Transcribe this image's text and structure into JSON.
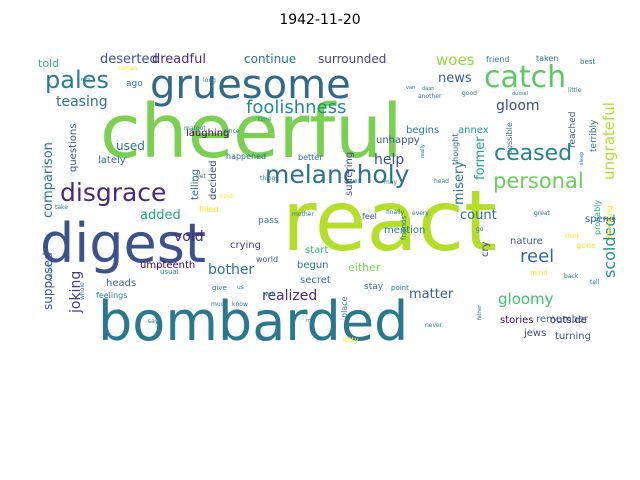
{
  "title": "1942-11-20",
  "words": [
    {
      "text": "cheerful",
      "color": "#7ad151"
    },
    {
      "text": "react",
      "color": "#b5de2b"
    },
    {
      "text": "bombarded",
      "color": "#2a788e"
    },
    {
      "text": "digest",
      "color": "#3b528b"
    },
    {
      "text": "gruesome",
      "color": "#31688e"
    },
    {
      "text": "catch",
      "color": "#5ec962"
    },
    {
      "text": "melancholy",
      "color": "#2c728e"
    },
    {
      "text": "disgrace",
      "color": "#482878"
    },
    {
      "text": "pales",
      "color": "#287d8e"
    },
    {
      "text": "personal",
      "color": "#6ccd5a"
    },
    {
      "text": "foolishness",
      "color": "#238a8d"
    },
    {
      "text": "ceased",
      "color": "#26828e"
    },
    {
      "text": "reel",
      "color": "#2f6c8e"
    },
    {
      "text": "gloomy",
      "color": "#42be71"
    },
    {
      "text": "teasing",
      "color": "#2d708e"
    },
    {
      "text": "woes",
      "color": "#95d840"
    },
    {
      "text": "gloom",
      "color": "#3e4a89"
    },
    {
      "text": "deserted",
      "color": "#3b528b"
    },
    {
      "text": "dreadful",
      "color": "#472d7b"
    },
    {
      "text": "continue",
      "color": "#2a788e"
    },
    {
      "text": "surrounded",
      "color": "#414487"
    },
    {
      "text": "news",
      "color": "#33638d"
    },
    {
      "text": "scolded",
      "color": "#21918c"
    },
    {
      "text": "ungrateful",
      "color": "#b5de2b"
    },
    {
      "text": "realized",
      "color": "#472d7b"
    },
    {
      "text": "comparison",
      "color": "#2a788e"
    },
    {
      "text": "supposed",
      "color": "#3b528b"
    },
    {
      "text": "joking",
      "color": "#443983"
    },
    {
      "text": "void",
      "color": "#482475"
    },
    {
      "text": "bother",
      "color": "#2c728e"
    },
    {
      "text": "added",
      "color": "#22a884"
    },
    {
      "text": "count",
      "color": "#2d708e"
    },
    {
      "text": "help",
      "color": "#3e4a89"
    },
    {
      "text": "matter",
      "color": "#34618d"
    },
    {
      "text": "former",
      "color": "#20a486"
    },
    {
      "text": "misery",
      "color": "#2a788e"
    },
    {
      "text": "used",
      "color": "#2c728e"
    },
    {
      "text": "told",
      "color": "#35b779"
    },
    {
      "text": "laughing",
      "color": "#440154"
    },
    {
      "text": "crying",
      "color": "#453781"
    },
    {
      "text": "umpteenth",
      "color": "#440154"
    },
    {
      "text": "heads",
      "color": "#38588c"
    },
    {
      "text": "outside",
      "color": "#440154"
    },
    {
      "text": "jews",
      "color": "#3e4a89"
    },
    {
      "text": "turning",
      "color": "#3b528b"
    },
    {
      "text": "spend",
      "color": "#3b528b"
    },
    {
      "text": "nature",
      "color": "#39558c"
    },
    {
      "text": "cry",
      "color": "#3e4a89"
    },
    {
      "text": "begun",
      "color": "#2a788e"
    },
    {
      "text": "secret",
      "color": "#2c728e"
    },
    {
      "text": "start",
      "color": "#35b779"
    },
    {
      "text": "either",
      "color": "#7ad151"
    },
    {
      "text": "stories",
      "color": "#440154"
    },
    {
      "text": "remember",
      "color": "#31688e"
    },
    {
      "text": "mention",
      "color": "#2a788e"
    },
    {
      "text": "begins",
      "color": "#2a788e"
    },
    {
      "text": "annex",
      "color": "#1f9e89"
    },
    {
      "text": "unhappy",
      "color": "#38588c"
    },
    {
      "text": "suffering",
      "color": "#3f4788"
    },
    {
      "text": "decided",
      "color": "#3e4a89"
    },
    {
      "text": "telling",
      "color": "#2c728e"
    },
    {
      "text": "lately",
      "color": "#2d708e"
    },
    {
      "text": "questions",
      "color": "#3b528b"
    },
    {
      "text": "happened",
      "color": "#2c728e"
    },
    {
      "text": "better",
      "color": "#2a788e"
    },
    {
      "text": "feel",
      "color": "#3b528b"
    },
    {
      "text": "pass",
      "color": "#2c728e"
    },
    {
      "text": "feelings",
      "color": "#2a788e"
    },
    {
      "text": "world",
      "color": "#3b528b"
    },
    {
      "text": "terribly",
      "color": "#2a788e"
    },
    {
      "text": "reached",
      "color": "#38588c"
    },
    {
      "text": "possible",
      "color": "#2c728e"
    },
    {
      "text": "thought",
      "color": "#2c728e"
    },
    {
      "text": "ago",
      "color": "#2c728e"
    },
    {
      "text": "probably",
      "color": "#20a486"
    },
    {
      "text": "thinking",
      "color": "#fde725"
    },
    {
      "text": "friend",
      "color": "#2a788e"
    },
    {
      "text": "taken",
      "color": "#2a788e"
    },
    {
      "text": "best",
      "color": "#2a788e"
    },
    {
      "text": "stay",
      "color": "#2a788e"
    },
    {
      "text": "place",
      "color": "#2a788e"
    },
    {
      "text": "point",
      "color": "#2a788e"
    },
    {
      "text": "kitty",
      "color": "#fde725"
    },
    {
      "text": "give",
      "color": "#2a788e"
    },
    {
      "text": "mind",
      "color": "#fde725"
    },
    {
      "text": "gone",
      "color": "#fde725"
    },
    {
      "text": "filled",
      "color": "#fde725"
    },
    {
      "text": "usual",
      "color": "#2a788e"
    },
    {
      "text": "margot",
      "color": "#2a788e"
    },
    {
      "text": "long",
      "color": "#2a788e"
    },
    {
      "text": "comes",
      "color": "#fde725"
    },
    {
      "text": "another",
      "color": "#2a788e"
    },
    {
      "text": "good",
      "color": "#2a788e"
    },
    {
      "text": "dussel",
      "color": "#2a788e"
    },
    {
      "text": "little",
      "color": "#2a788e"
    },
    {
      "text": "since",
      "color": "#2a788e"
    },
    {
      "text": "time",
      "color": "#2a788e"
    },
    {
      "text": "still",
      "color": "#2a788e"
    },
    {
      "text": "may",
      "color": "#2a788e"
    },
    {
      "text": "head",
      "color": "#2a788e"
    },
    {
      "text": "things",
      "color": "#2a788e"
    },
    {
      "text": "get",
      "color": "#2a788e"
    },
    {
      "text": "really",
      "color": "#2a788e"
    },
    {
      "text": "mother",
      "color": "#2a788e"
    },
    {
      "text": "finally",
      "color": "#2a788e"
    },
    {
      "text": "every",
      "color": "#2a788e"
    },
    {
      "text": "great",
      "color": "#2a788e"
    },
    {
      "text": "friends",
      "color": "#2a788e"
    },
    {
      "text": "think",
      "color": "#fde725"
    },
    {
      "text": "take",
      "color": "#2a788e"
    },
    {
      "text": "kind",
      "color": "#fde725"
    },
    {
      "text": "much",
      "color": "#2a788e"
    },
    {
      "text": "know",
      "color": "#2a788e"
    },
    {
      "text": "well",
      "color": "#2a788e"
    },
    {
      "text": "us",
      "color": "#2a788e"
    },
    {
      "text": "say",
      "color": "#2a788e"
    },
    {
      "text": "never",
      "color": "#2a788e"
    },
    {
      "text": "father",
      "color": "#2a788e"
    },
    {
      "text": "back",
      "color": "#2a788e"
    },
    {
      "text": "tell",
      "color": "#2a788e"
    },
    {
      "text": "would",
      "color": "#2a788e"
    },
    {
      "text": "whole",
      "color": "#2a788e"
    },
    {
      "text": "sleep",
      "color": "#2a788e"
    },
    {
      "text": "mrs",
      "color": "#2a788e"
    },
    {
      "text": "mr",
      "color": "#2a788e"
    },
    {
      "text": "van",
      "color": "#2a788e"
    },
    {
      "text": "daan",
      "color": "#2a788e"
    },
    {
      "text": "go",
      "color": "#2a788e"
    }
  ]
}
